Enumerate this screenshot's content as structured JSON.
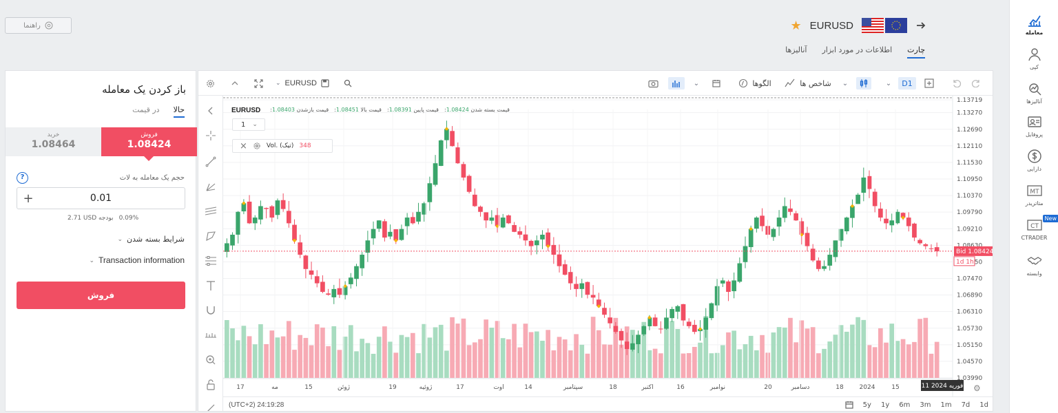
{
  "header": {
    "help_label": "راهنما",
    "symbol": "EURUSD",
    "tabs": [
      "چارت",
      "اطلاعات در مورد ابزار",
      "آنالیزها"
    ],
    "active_tab": 0
  },
  "nav": [
    {
      "label": "معامله",
      "icon": "trade-icon",
      "active": true
    },
    {
      "label": "کپی",
      "icon": "copy-icon"
    },
    {
      "label": "آنالیزها",
      "icon": "analytics-icon"
    },
    {
      "label": "پروفایل",
      "icon": "profile-icon"
    },
    {
      "label": "دارایی",
      "icon": "dollar-icon"
    },
    {
      "label": "متاتریدر",
      "icon": "mt-icon"
    },
    {
      "label": "CTRADER",
      "icon": "ct-icon",
      "badge": "New"
    },
    {
      "label": "وابسته",
      "icon": "handshake-icon"
    }
  ],
  "trade": {
    "title": "باز کردن یک معامله",
    "order_tabs": [
      "حالا",
      "در قیمت"
    ],
    "buy_label": "خرید",
    "buy_price": "1.08464",
    "sell_label": "فروش",
    "sell_price": "1.08424",
    "volume_label": "حجم یک معامله به لات",
    "volume_value": "0.01",
    "margin_value": "2.71 USD بودجه",
    "margin_pct": "0.09%",
    "close_conditions": "شرایط بسته شدن",
    "transaction_info": "Transaction information",
    "action_label": "فروش"
  },
  "chart_toolbar": {
    "symbol": "EURUSD",
    "interval": "D1",
    "indicators_label": "شاخص ها",
    "patterns_label": "الگوها"
  },
  "chart_legend": {
    "symbol": "EURUSD",
    "close_label": ":قیمت بسته شدن",
    "close_value": "1.08424",
    "low_label": ":قیمت پایین",
    "low_value": "1.08391",
    "high_label": ":قیمت بالا",
    "high_value": "1.08451",
    "open_label": ":قیمت بازشدن",
    "open_value": "1.08403",
    "interval_select": "1",
    "volume_name": "Vol. (تیک)",
    "volume_value": "348"
  },
  "chart_bottom": {
    "clock": "(UTC+2) 24:19:28",
    "ranges": [
      "5y",
      "1y",
      "6m",
      "3m",
      "1m",
      "7d",
      "1d"
    ]
  },
  "chart_data": {
    "type": "candlestick",
    "title": "EURUSD",
    "y_ticks": [
      "1.13719",
      "1.13270",
      "1.12690",
      "1.12110",
      "1.11530",
      "1.10950",
      "1.10370",
      "1.09790",
      "1.09210",
      "1.08630",
      "1.08050",
      "1.07470",
      "1.06890",
      "1.06310",
      "1.05730",
      "1.05150",
      "1.04570",
      "1.03990"
    ],
    "ylim": [
      1.0399,
      1.1372
    ],
    "x_ticks": [
      "17",
      "مه",
      "15",
      "ژوئن",
      "19",
      "ژوئیه",
      "17",
      "اوت",
      "14",
      "سپتامبر",
      "18",
      "اکتبر",
      "16",
      "نوامبر",
      "20",
      "دسامبر",
      "18",
      "2024",
      "15",
      "11 فوریه 2024"
    ],
    "bid_label": "Bid",
    "bid_price": "1.08424",
    "countdown": "1d 1h",
    "colors": {
      "up": "#3aa56b",
      "down": "#f14e63",
      "vol_up": "#a8dcc0",
      "vol_down": "#f7aab4",
      "marker": "#f5b400"
    },
    "close_path": [
      1.087,
      1.09,
      1.098,
      1.101,
      1.094,
      1.096,
      1.1,
      1.099,
      1.096,
      1.102,
      1.099,
      1.094,
      1.088,
      1.083,
      1.078,
      1.076,
      1.073,
      1.07,
      1.069,
      1.071,
      1.069,
      1.072,
      1.075,
      1.079,
      1.083,
      1.088,
      1.092,
      1.095,
      1.089,
      1.091,
      1.088,
      1.092,
      1.096,
      1.094,
      1.098,
      1.101,
      1.108,
      1.115,
      1.123,
      1.127,
      1.121,
      1.115,
      1.11,
      1.105,
      1.1,
      1.098,
      1.095,
      1.096,
      1.093,
      1.096,
      1.094,
      1.091,
      1.09,
      1.088,
      1.086,
      1.088,
      1.09,
      1.086,
      1.083,
      1.079,
      1.076,
      1.073,
      1.071,
      1.073,
      1.069,
      1.068,
      1.065,
      1.062,
      1.059,
      1.056,
      1.053,
      1.05,
      1.052,
      1.055,
      1.058,
      1.061,
      1.058,
      1.057,
      1.061,
      1.064,
      1.065,
      1.06,
      1.058,
      1.056,
      1.057,
      1.061,
      1.066,
      1.072,
      1.074,
      1.07,
      1.074,
      1.08,
      1.086,
      1.092,
      1.096,
      1.093,
      1.09,
      1.092,
      1.096,
      1.1,
      1.098,
      1.095,
      1.09,
      1.086,
      1.081,
      1.078,
      1.079,
      1.083,
      1.088,
      1.092,
      1.096,
      1.1,
      1.104,
      1.11,
      1.106,
      1.1,
      1.096,
      1.094,
      1.095,
      1.098,
      1.096,
      1.093,
      1.089,
      1.087,
      1.086,
      1.085,
      1.0842
    ]
  }
}
